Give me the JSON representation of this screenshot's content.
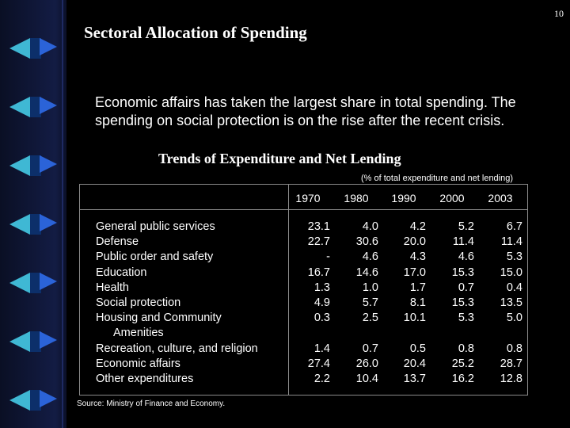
{
  "page_number": "10",
  "title": "Sectoral Allocation of Spending",
  "body_text": "Economic affairs has taken the largest share in total spending. The spending on social protection is on the rise after the recent crisis.",
  "table": {
    "title": "Trends of Expenditure and Net Lending",
    "unit_note": "(% of total expenditure and net lending)",
    "years": [
      "1970",
      "1980",
      "1990",
      "2000",
      "2003"
    ],
    "rows": [
      {
        "label": "General public services",
        "values": [
          "23.1",
          "4.0",
          "4.2",
          "5.2",
          "6.7"
        ]
      },
      {
        "label": "Defense",
        "values": [
          "22.7",
          "30.6",
          "20.0",
          "11.4",
          "11.4"
        ]
      },
      {
        "label": "Public order and safety",
        "values": [
          "-",
          "4.6",
          "4.3",
          "4.6",
          "5.3"
        ]
      },
      {
        "label": "Education",
        "values": [
          "16.7",
          "14.6",
          "17.0",
          "15.3",
          "15.0"
        ]
      },
      {
        "label": "Health",
        "values": [
          "1.3",
          "1.0",
          "1.7",
          "0.7",
          "0.4"
        ]
      },
      {
        "label": "Social protection",
        "values": [
          "4.9",
          "5.7",
          "8.1",
          "15.3",
          "13.5"
        ]
      },
      {
        "label": "Housing and Community",
        "label_cont": "Amenities",
        "values": [
          "0.3",
          "2.5",
          "10.1",
          "5.3",
          "5.0"
        ]
      },
      {
        "label": "Recreation, culture, and religion",
        "values": [
          "1.4",
          "0.7",
          "0.5",
          "0.8",
          "0.8"
        ]
      },
      {
        "label": "Economic affairs",
        "values": [
          "27.4",
          "26.0",
          "20.4",
          "25.2",
          "28.7"
        ]
      },
      {
        "label": "Other expenditures",
        "values": [
          "2.2",
          "10.4",
          "13.7",
          "16.2",
          "12.8"
        ]
      }
    ],
    "source": "Source: Ministry of Finance and Economy."
  },
  "colors": {
    "background": "#000000",
    "text": "#ffffff",
    "arrow_left": "#3fb8d4",
    "arrow_right": "#2b63d8"
  }
}
